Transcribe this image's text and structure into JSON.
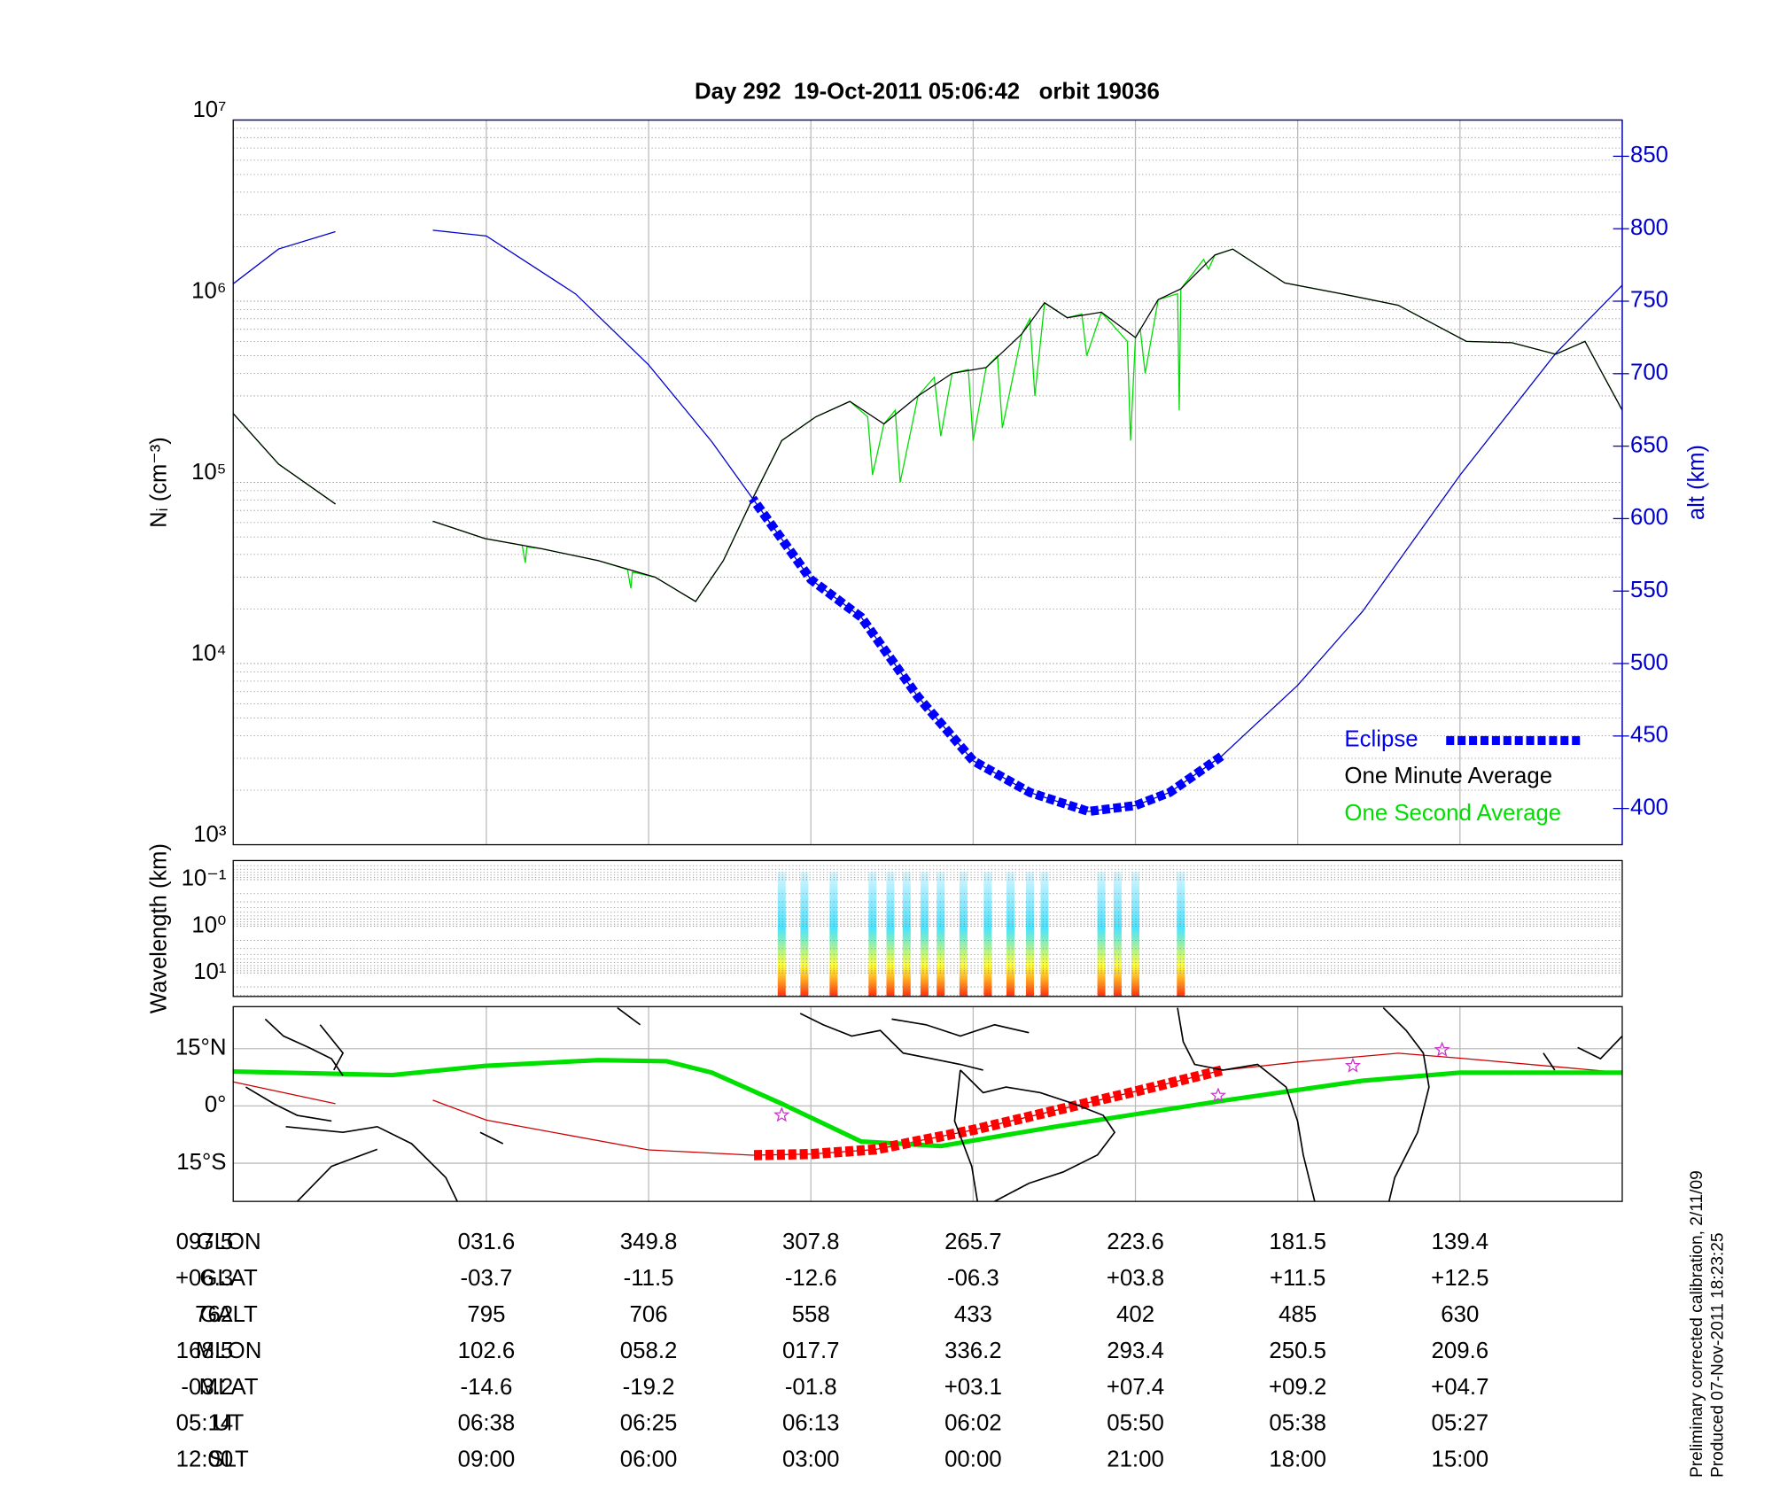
{
  "chart_data": [
    {
      "type": "line",
      "title": "Day 292  19-Oct-2011 05:06:42   orbit 19036",
      "ylabel": "Nᵢ (cm⁻³)",
      "y2label": "alt (km)",
      "log_y": true,
      "grid": true,
      "legend": "lower right",
      "xlim": [
        0,
        8.56
      ],
      "xticks": [
        1,
        2,
        3,
        4,
        5,
        6,
        7
      ],
      "ylim": [
        1000,
        10000000
      ],
      "yticks": [
        {
          "value": 1000,
          "label": "10³"
        },
        {
          "value": 10000,
          "label": "10⁴"
        },
        {
          "value": 100000,
          "label": "10⁵"
        },
        {
          "value": 1000000,
          "label": "10⁶"
        },
        {
          "value": 10000000,
          "label": "10⁷"
        }
      ],
      "y2lim": [
        375,
        875
      ],
      "y2ticks": [
        400,
        450,
        500,
        550,
        600,
        650,
        700,
        750,
        800,
        850
      ],
      "y2color": "#0000cc",
      "altitude": {
        "color": "#0000cc",
        "axis": "y2",
        "x": [
          0,
          0.41,
          1,
          1.6,
          2,
          2.47,
          2.79,
          3,
          3.29,
          3.65,
          4,
          4.34,
          4.69,
          5,
          5.36,
          5.61,
          6,
          6.45,
          7,
          7.33,
          7.6,
          7.93,
          8.28,
          8.56
        ],
        "values": [
          761,
          714,
          630,
          536,
          485,
          436,
          411,
          402,
          398,
          411,
          433,
          477,
          532,
          558,
          614,
          653,
          706,
          755,
          795,
          799,
          null,
          798,
          786,
          762
        ]
      },
      "series": [
        {
          "name": "Eclipse",
          "color": "#0000ff",
          "axis": "y2",
          "style": "dashed",
          "x": [
            2.47,
            2.79,
            3,
            3.29,
            3.65,
            4,
            4.34,
            4.69,
            5,
            5.36
          ],
          "values": [
            436,
            411,
            402,
            398,
            411,
            433,
            477,
            532,
            558,
            614
          ]
        },
        {
          "name": "One Minute Average",
          "color": "#000000",
          "x": [
            0,
            0.23,
            0.41,
            0.68,
            0.96,
            1.38,
            1.73,
            2.08,
            2.4,
            2.51,
            2.72,
            2.86,
            3,
            3.21,
            3.42,
            3.56,
            3.7,
            3.92,
            4.13,
            4.34,
            4.55,
            4.76,
            4.97,
            5.18,
            5.36,
            5.54,
            5.71,
            5.96,
            6.31,
            6.66,
            7.01,
            7.33,
            7.6,
            7.93,
            8.28,
            8.56
          ],
          "values": [
            250000,
            600000,
            510000,
            590000,
            600000,
            950000,
            1100000,
            1260000,
            1940000,
            1800000,
            1170000,
            1020000,
            630000,
            870000,
            810000,
            980000,
            660000,
            430000,
            400000,
            300000,
            210000,
            280000,
            230000,
            170000,
            81000,
            37000,
            22000,
            30000,
            37000,
            43000,
            49000,
            61000,
            null,
            76000,
            126000,
            240000
          ]
        },
        {
          "name": "One Second Average",
          "color": "#00dd00",
          "x": [
            0,
            0.23,
            0.41,
            0.68,
            0.96,
            1.38,
            1.73,
            2.08,
            2.4,
            2.51,
            2.55,
            2.58,
            2.72,
            2.73,
            2.74,
            2.86,
            2.94,
            2.97,
            3,
            3.03,
            3.05,
            3.21,
            3.3,
            3.33,
            3.42,
            3.56,
            3.62,
            3.65,
            3.7,
            3.82,
            3.85,
            3.92,
            4,
            4.03,
            4.13,
            4.2,
            4.24,
            4.34,
            4.45,
            4.48,
            4.55,
            4.62,
            4.65,
            4.76,
            4.97,
            5.18,
            5.36,
            5.54,
            5.71,
            5.96,
            6.1,
            6.11,
            6.13,
            6.31,
            6.66,
            6.75,
            6.76,
            6.78,
            7.01,
            7.33,
            7.6,
            7.93,
            8.28,
            8.56
          ],
          "values": [
            250000,
            600000,
            510000,
            590000,
            600000,
            950000,
            1100000,
            1260000,
            1940000,
            1800000,
            1500000,
            1700000,
            1170000,
            250000,
            1100000,
            1020000,
            400000,
            700000,
            630000,
            170000,
            600000,
            870000,
            500000,
            850000,
            810000,
            980000,
            300000,
            800000,
            660000,
            200000,
            500000,
            430000,
            170000,
            420000,
            400000,
            180000,
            380000,
            300000,
            100000,
            250000,
            210000,
            110000,
            230000,
            280000,
            230000,
            170000,
            81000,
            37000,
            22000,
            30000,
            32000,
            26000,
            33000,
            37000,
            43000,
            44000,
            36000,
            45000,
            49000,
            61000,
            null,
            76000,
            126000,
            240000
          ]
        }
      ]
    },
    {
      "type": "spectrogram",
      "ylabel": "Wavelength (km)",
      "log_y": true,
      "xlim": [
        0,
        8.56
      ],
      "ylim": [
        32,
        0.039
      ],
      "yticks": [
        {
          "value": 0.1,
          "label": "10⁻¹"
        },
        {
          "value": 1,
          "label": "10⁰"
        },
        {
          "value": 10,
          "label": "10¹"
        }
      ],
      "extent": [
        1.57,
        5.36
      ],
      "bursts": [
        2.72,
        3.0,
        3.11,
        3.21,
        3.56,
        3.65,
        3.77,
        3.91,
        4.06,
        4.2,
        4.3,
        4.41,
        4.51,
        4.62,
        4.86,
        5.04,
        5.18
      ]
    },
    {
      "type": "map",
      "xlim": [
        0,
        8.56
      ],
      "xticks": [
        1,
        2,
        3,
        4,
        5,
        6,
        7
      ],
      "ylim": [
        -25,
        26
      ],
      "yticks": [
        {
          "value": 15,
          "label": "15°N"
        },
        {
          "value": 0,
          "label": "0°"
        },
        {
          "value": -15,
          "label": "15°S"
        }
      ],
      "track": {
        "color": "#cc0000",
        "x": [
          0,
          1,
          1.38,
          2,
          2.47,
          3,
          4,
          4.6,
          5,
          5.36,
          6,
          7,
          7.33,
          7.6,
          7.93,
          8.56
        ],
        "values": [
          8.7,
          12.5,
          13.8,
          11.5,
          9.3,
          3.8,
          -6.3,
          -11.4,
          -12.6,
          -12.9,
          -11.5,
          -3.7,
          1.5,
          null,
          0.6,
          6.3
        ]
      },
      "eclipse": {
        "color": "#ff0000",
        "x": [
          2.47,
          3,
          4,
          4.6,
          5,
          5.36
        ],
        "values": [
          9.3,
          3.8,
          -6.3,
          -11.4,
          -12.6,
          -12.9
        ]
      },
      "equator": {
        "color": "#00e000",
        "x": [
          0,
          1,
          1.6,
          2.44,
          3.49,
          4.2,
          4.69,
          5.18,
          5.61,
          5.89,
          6.31,
          7.01,
          7.58,
          8.56
        ],
        "values": [
          8.7,
          8.7,
          6.6,
          1.5,
          -5.4,
          -10.5,
          -9.3,
          0.6,
          8.7,
          11.7,
          12,
          10.5,
          8.1,
          9
        ]
      },
      "stars": {
        "color": "#cc33cc",
        "x": [
          1.11,
          1.66,
          2.49,
          5.18
        ],
        "values": [
          14.7,
          10.5,
          2.7,
          -2.4
        ]
      }
    }
  ],
  "table": {
    "rows": [
      {
        "label": "GLON",
        "values": [
          "139.4",
          "181.5",
          "223.6",
          "265.7",
          "307.8",
          "349.8",
          "031.6",
          "097.5"
        ]
      },
      {
        "label": "GLAT",
        "values": [
          "+12.5",
          "+11.5",
          "+03.8",
          "-06.3",
          "-12.6",
          "-11.5",
          "-03.7",
          "+06.3"
        ]
      },
      {
        "label": "GALT",
        "values": [
          "630",
          "485",
          "402",
          "433",
          "558",
          "706",
          "795",
          "762"
        ]
      },
      {
        "label": "MLON",
        "values": [
          "209.6",
          "250.5",
          "293.4",
          "336.2",
          "017.7",
          "058.2",
          "102.6",
          "168.5"
        ]
      },
      {
        "label": "MLAT",
        "values": [
          "+04.7",
          "+09.2",
          "+07.4",
          "+03.1",
          "-01.8",
          "-19.2",
          "-14.6",
          "-03.2"
        ]
      },
      {
        "label": "UT",
        "values": [
          "05:27",
          "05:38",
          "05:50",
          "06:02",
          "06:13",
          "06:25",
          "06:38",
          "05:14"
        ]
      },
      {
        "label": "SLT",
        "values": [
          "15:00",
          "18:00",
          "21:00",
          "00:00",
          "03:00",
          "06:00",
          "09:00",
          "12:00"
        ]
      }
    ]
  },
  "footnotes": [
    "Preliminary corrected calibration, 2/11/09",
    "Produced 07-Nov-2011 18:23:25"
  ]
}
